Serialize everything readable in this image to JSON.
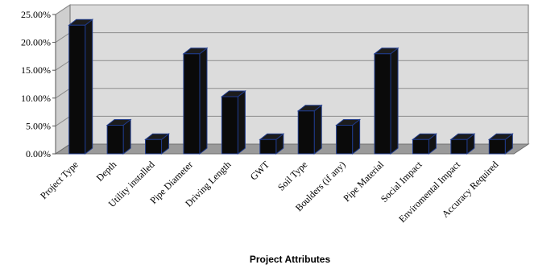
{
  "chart_data": {
    "type": "bar",
    "title": "",
    "xlabel": "Project Attributes",
    "ylabel": "",
    "ylim": [
      0,
      0.25
    ],
    "yticks": [
      "0.00%",
      "5.00%",
      "10.00%",
      "15.00%",
      "20.00%",
      "25.00%"
    ],
    "grid": true,
    "legend": "none",
    "style": "3d",
    "categories": [
      "Project Type",
      "Depth",
      "Utility installed",
      "Pipe Diameter",
      "Driving Length",
      "GWT",
      "Soil Type",
      "Boulders (if any)",
      "Pipe Material",
      "Social Impact",
      "Enviromental Impact",
      "Accuracy Required"
    ],
    "values": [
      0.2308,
      0.0513,
      0.0256,
      0.1795,
      0.1026,
      0.0256,
      0.0769,
      0.0513,
      0.1795,
      0.0256,
      0.0256,
      0.0256
    ],
    "colors": {
      "bar_front": "#0a0a0a",
      "bar_side": "#121212",
      "bar_top": "#1c1c1c",
      "bar_edge": "#1f3a8a",
      "back_wall": "#dcdcdc",
      "floor": "#9a9a9a",
      "gridline": "#8c8c8c"
    }
  }
}
